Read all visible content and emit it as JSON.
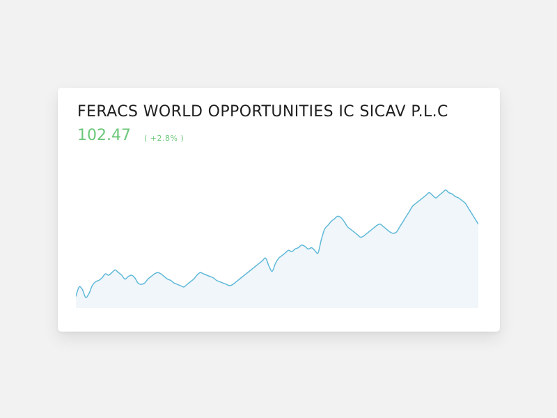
{
  "fund": {
    "name": "FERACS WORLD OPPORTUNITIES IC SICAV P.L.C",
    "price": "102.47",
    "change": "( +2.8% )"
  },
  "colors": {
    "price_up": "#6cc779",
    "line": "#5fb9d8",
    "area": "#f0f6fa",
    "background": "#f2f2f2",
    "card": "#ffffff"
  },
  "chart_data": {
    "type": "area",
    "title": "",
    "xlabel": "",
    "ylabel": "",
    "grid": false,
    "legend": "none",
    "ylim": [
      0,
      100
    ],
    "series": [
      {
        "values": [
          9,
          16,
          14,
          8,
          11,
          17,
          20,
          21,
          23,
          26,
          25,
          27,
          29,
          27,
          25,
          22,
          24,
          25,
          23,
          19,
          18,
          19,
          22,
          24,
          26,
          27,
          26,
          24,
          22,
          21,
          19,
          18,
          17,
          16,
          18,
          20,
          22,
          25,
          27,
          26,
          25,
          24,
          23,
          21,
          20,
          19,
          18,
          17,
          18,
          20,
          22,
          24,
          26,
          28,
          30,
          32,
          34,
          36,
          38,
          32,
          28,
          34,
          38,
          40,
          42,
          44,
          43,
          45,
          46,
          48,
          47,
          45,
          46,
          44,
          42,
          52,
          60,
          63,
          66,
          68,
          70,
          69,
          66,
          62,
          60,
          58,
          56,
          54,
          55,
          57,
          59,
          61,
          63,
          64,
          62,
          60,
          58,
          57,
          58,
          62,
          66,
          70,
          74,
          78,
          80,
          82,
          84,
          86,
          88,
          86,
          84,
          86,
          88,
          90,
          88,
          87,
          85,
          84,
          82,
          80,
          76,
          72,
          68,
          64
        ]
      }
    ]
  }
}
